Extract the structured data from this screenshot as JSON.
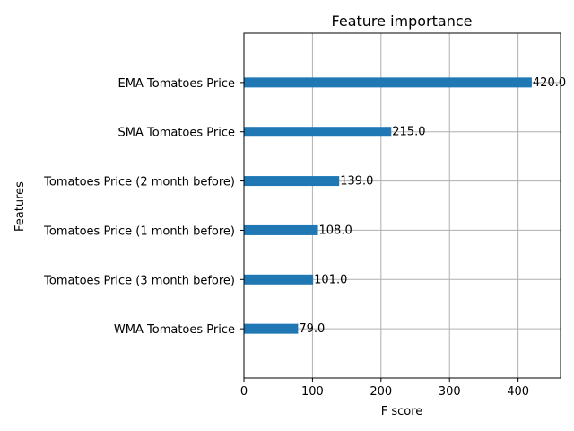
{
  "chart_data": {
    "type": "bar",
    "orientation": "horizontal",
    "title": "Feature importance",
    "xlabel": "F score",
    "ylabel": "Features",
    "categories": [
      "EMA Tomatoes Price",
      "SMA Tomatoes Price",
      "Tomatoes Price (2 month before)",
      "Tomatoes Price (1 month before)",
      "Tomatoes Price (3 month before)",
      "WMA Tomatoes Price"
    ],
    "values": [
      420,
      215,
      139,
      108,
      101,
      79
    ],
    "value_labels": [
      "420.0",
      "215.0",
      "139.0",
      "108.0",
      "101.0",
      "79.0"
    ],
    "xlim": [
      0,
      462
    ],
    "xticks": [
      0,
      100,
      200,
      300,
      400
    ],
    "xtick_labels": [
      "0",
      "100",
      "200",
      "300",
      "400"
    ],
    "grid": true,
    "bar_color": "#1f77b4",
    "grid_color": "#b0b0b0"
  }
}
